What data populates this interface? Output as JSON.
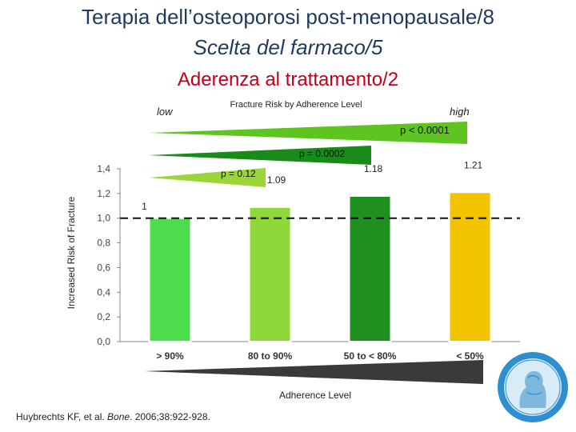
{
  "slide": {
    "title": "Terapia dell’osteoporosi post-menopausale/8",
    "subtitle": "Scelta del farmaco/5",
    "heading": "Aderenza al trattamento/2",
    "citation_prefix": "Huybrechts KF, et al. ",
    "citation_journal": "Bone",
    "citation_suffix": ". 2006;38:922-928."
  },
  "chart_data": {
    "type": "bar",
    "title": "Fracture Risk by Adherence Level",
    "xlabel": "Adherence Level",
    "ylabel": "Increased Risk of Fracture",
    "categories": [
      "> 90%",
      "80 to 90%",
      "50 to < 80%",
      "< 50%"
    ],
    "values": [
      1,
      1.09,
      1.18,
      1.21
    ],
    "value_labels": [
      "1",
      "1.09",
      "1.18",
      "1.21"
    ],
    "y_ticks": [
      "0,0",
      "0,2",
      "0,4",
      "0,6",
      "0,8",
      "1,0",
      "1,2",
      "1,4"
    ],
    "ylim": [
      0,
      1.4
    ],
    "reference_line": 1.0,
    "risk_low_label": "low",
    "risk_high_label": "high",
    "p_values": [
      "p < 0.0001",
      "p = 0.0002",
      "p = 0.12"
    ],
    "colors": {
      "bars": [
        "#4cdc4c",
        "#8ed83a",
        "#1f8f1f",
        "#f2c400"
      ],
      "wedge_outer": "#5ec41f",
      "wedge_mid": "#1a8a1a",
      "wedge_inner": "#9ad53a",
      "adherence_wedge": "#3a3a3a"
    },
    "grid": false,
    "legend": "none"
  }
}
